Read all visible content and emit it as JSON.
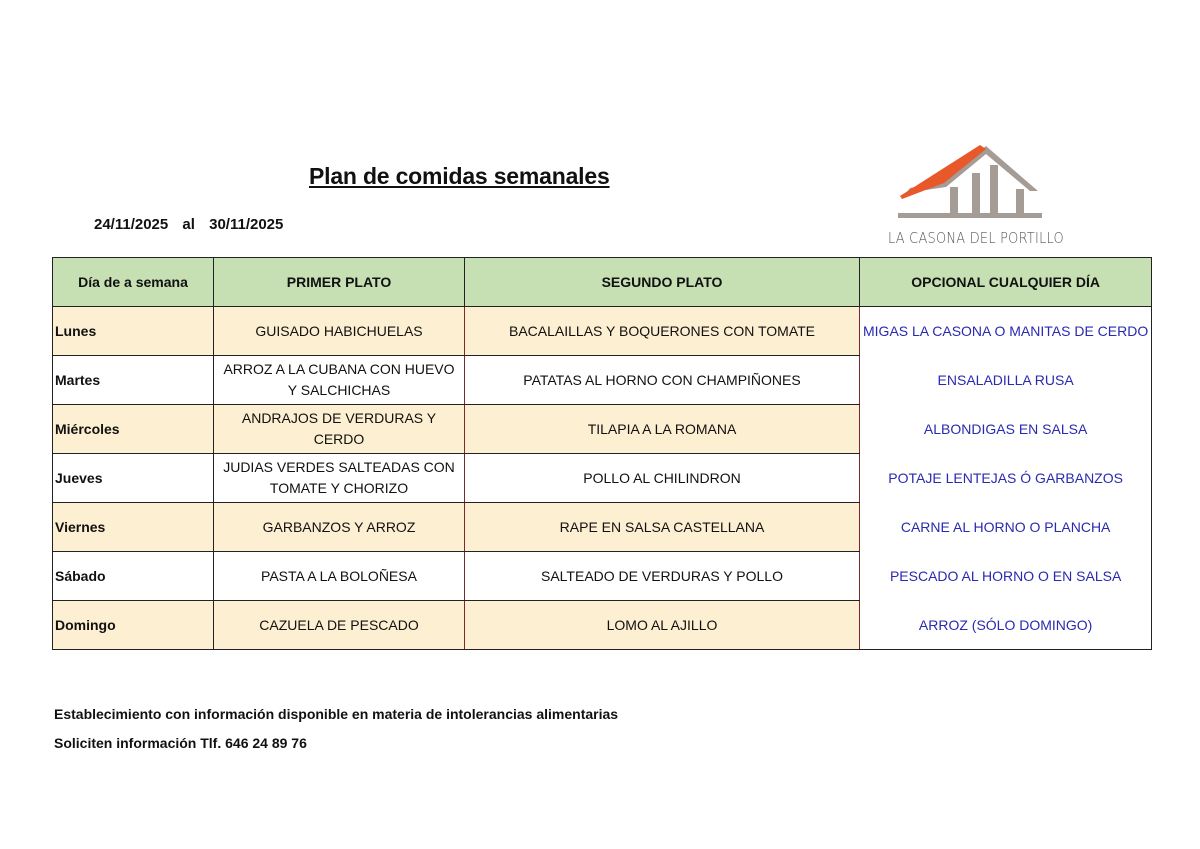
{
  "title": "Plan de comidas semanales",
  "date_range": {
    "from": "24/11/2025",
    "sep": "al",
    "to": "30/11/2025"
  },
  "logo": {
    "text": "LA CASONA DEL PORTILLO",
    "roof_color": "#e8582a",
    "house_color": "#a59d95"
  },
  "table": {
    "headers": [
      "Día de a semana",
      "PRIMER PLATO",
      "SEGUNDO PLATO",
      "OPCIONAL CUALQUIER DÍA"
    ],
    "rows": [
      {
        "day": "Lunes",
        "primero": "GUISADO HABICHUELAS",
        "segundo": "BACALAILLAS Y BOQUERONES CON TOMATE",
        "opcional": "MIGAS LA CASONA  O MANITAS DE CERDO"
      },
      {
        "day": "Martes",
        "primero": "ARROZ A LA CUBANA CON HUEVO Y SALCHICHAS",
        "segundo": "PATATAS  AL HORNO CON CHAMPIÑONES",
        "opcional": "ENSALADILLA RUSA"
      },
      {
        "day": "Miércoles",
        "primero": "ANDRAJOS DE VERDURAS Y CERDO",
        "segundo": "TILAPIA A LA ROMANA",
        "opcional": "ALBONDIGAS EN SALSA"
      },
      {
        "day": "Jueves",
        "primero": "JUDIAS VERDES SALTEADAS CON TOMATE Y CHORIZO",
        "segundo": "POLLO AL CHILINDRON",
        "opcional": "POTAJE LENTEJAS Ó GARBANZOS"
      },
      {
        "day": "Viernes",
        "primero": "GARBANZOS Y ARROZ",
        "segundo": "RAPE EN SALSA CASTELLANA",
        "opcional": "CARNE AL HORNO O PLANCHA"
      },
      {
        "day": "Sábado",
        "primero": "PASTA A LA BOLOÑESA",
        "segundo": "SALTEADO DE VERDURAS Y POLLO",
        "opcional": "PESCADO AL HORNO O EN SALSA"
      },
      {
        "day": "Domingo",
        "primero": "CAZUELA DE PESCADO",
        "segundo": "LOMO AL AJILLO",
        "opcional": "ARROZ  (SÓLO DOMINGO)"
      }
    ]
  },
  "footer": {
    "line1": "Establecimiento con información disponible en materia de intolerancias alimentarias",
    "line2": "Soliciten información Tlf. 646 24 89 76"
  },
  "colors": {
    "header_bg": "#c6dfb3",
    "alt_row_bg": "#fdefd1",
    "optional_text": "#2a2ab0"
  }
}
